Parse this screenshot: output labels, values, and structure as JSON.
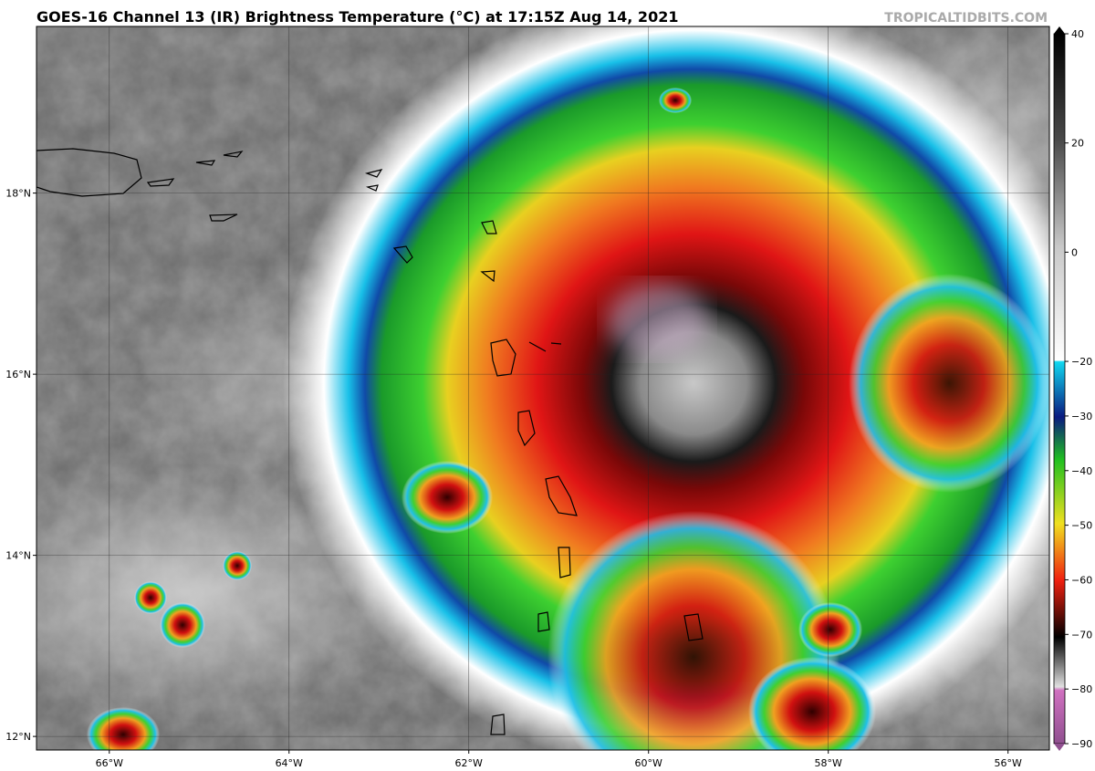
{
  "title": "GOES-16 Channel 13 (IR) Brightness Temperature (°C) at 17:15Z Aug 14, 2021",
  "watermark": "TROPICALTIDBITS.COM",
  "map": {
    "lon_range": [
      -66.81,
      -55.54
    ],
    "lat_range": [
      11.85,
      19.84
    ],
    "lat_lines": [
      {
        "value": 18,
        "label": "18°N"
      },
      {
        "value": 16,
        "label": "16°N"
      },
      {
        "value": 14,
        "label": "14°N"
      },
      {
        "value": 12,
        "label": "12°N"
      }
    ],
    "lon_lines": [
      {
        "value": -66,
        "label": "66°W"
      },
      {
        "value": -64,
        "label": "64°W"
      },
      {
        "value": -62,
        "label": "62°W"
      },
      {
        "value": -60,
        "label": "60°W"
      },
      {
        "value": -58,
        "label": "58°W"
      },
      {
        "value": -56,
        "label": "56°W"
      }
    ]
  },
  "colorbar": {
    "range": [
      -90,
      40
    ],
    "ticks": [
      40,
      20,
      0,
      {
        "value": -20,
        "label": "−20"
      },
      {
        "value": -30,
        "label": "−30"
      },
      {
        "value": -40,
        "label": "−40"
      },
      {
        "value": -50,
        "label": "−50"
      },
      {
        "value": -60,
        "label": "−60"
      },
      {
        "value": -70,
        "label": "−70"
      },
      {
        "value": -80,
        "label": "−80"
      },
      {
        "value": -90,
        "label": "−90"
      }
    ]
  }
}
